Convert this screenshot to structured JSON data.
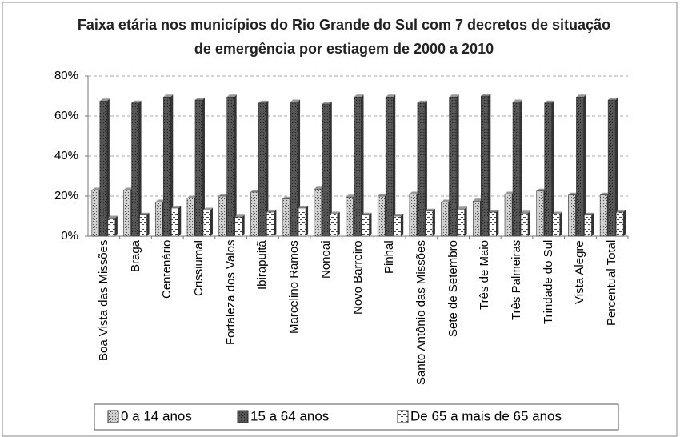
{
  "chart_data": {
    "type": "bar",
    "title": "Faixa etária nos municípios do Rio Grande do Sul com 7 decretos de situação de emergência por estiagem de 2000 a 2010",
    "categories": [
      "Boa Vista das Missões",
      "Braga",
      "Centenário",
      "Crissiumal",
      "Fortaleza dos Valos",
      "Ibirapuitã",
      "Marcelino Ramos",
      "Nonoai",
      "Novo Barreiro",
      "Pinhal",
      "Santo Antônio das Missões",
      "Sete de Setembro",
      "Três de Maio",
      "Três Palmeiras",
      "Trindade do Sul",
      "Vista Alegre",
      "Percentual Total"
    ],
    "series": [
      {
        "name": "0 a 14 anos",
        "color": "#d0d0d0",
        "values": [
          23,
          23,
          17,
          19,
          20,
          22,
          18.5,
          23.5,
          19.5,
          20,
          21,
          17,
          17.5,
          21,
          22.5,
          20.5,
          20.5
        ]
      },
      {
        "name": "15 a 64 anos",
        "color": "#555555",
        "values": [
          67.5,
          66.5,
          69.5,
          68,
          69.5,
          66.5,
          67,
          66,
          69.5,
          69.5,
          66.5,
          69.5,
          70,
          67,
          66.5,
          69.5,
          68
        ]
      },
      {
        "name": "De 65 a mais de 65 anos",
        "color": "#ffffff",
        "values": [
          9,
          10.5,
          14,
          13,
          9.5,
          12,
          14,
          11,
          10.5,
          10,
          12.5,
          13.5,
          12,
          11.5,
          11,
          10.5,
          12
        ]
      }
    ],
    "ylim": [
      0,
      80
    ],
    "yticks": [
      {
        "value": 0,
        "label": "0%"
      },
      {
        "value": 20,
        "label": "20%"
      },
      {
        "value": 40,
        "label": "40%"
      },
      {
        "value": 60,
        "label": "60%"
      },
      {
        "value": 80,
        "label": "80%"
      }
    ],
    "grid": true,
    "legend": "bottom"
  }
}
